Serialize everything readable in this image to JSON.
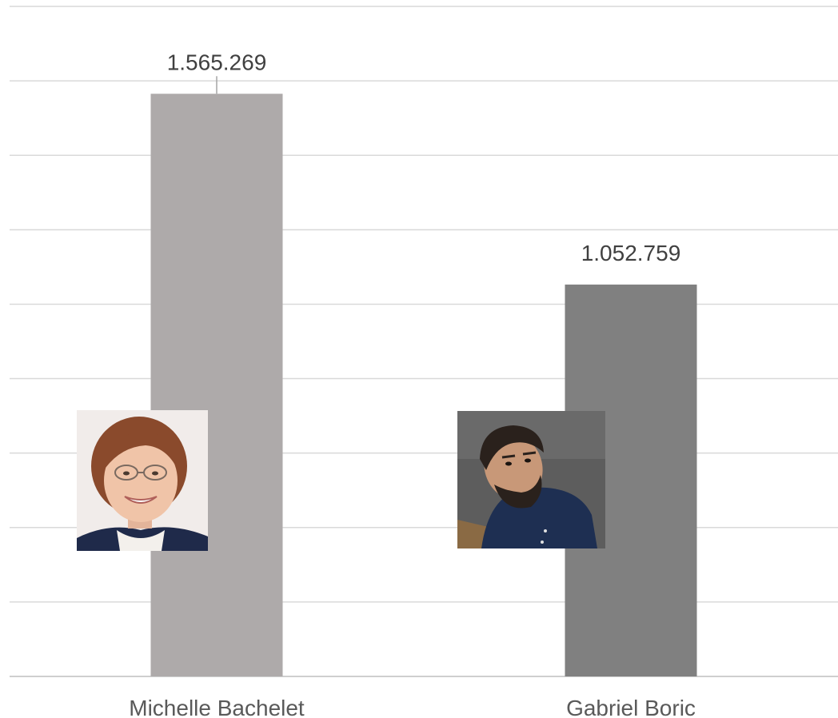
{
  "chart_data": {
    "type": "bar",
    "categories": [
      "Michelle Bachelet",
      "Gabriel Boric"
    ],
    "values": [
      1565269,
      1052759
    ],
    "value_labels": [
      "1.565.269",
      "1.052.759"
    ],
    "ylim": [
      0,
      1800000
    ],
    "grid": true,
    "colors": [
      "#aeaaaa",
      "#808080"
    ],
    "title": "",
    "xlabel": "",
    "ylabel": ""
  },
  "portraits": [
    {
      "category": "Michelle Bachelet",
      "icon": "portrait-photo"
    },
    {
      "category": "Gabriel Boric",
      "icon": "portrait-photo"
    }
  ]
}
